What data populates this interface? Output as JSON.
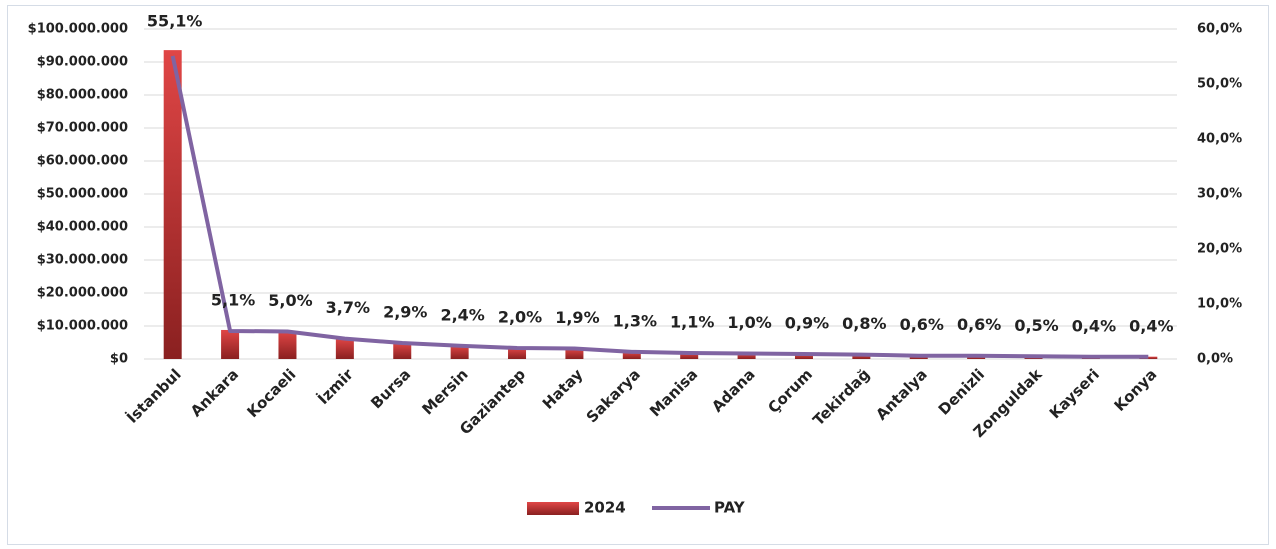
{
  "chart_data": {
    "type": "bar+line",
    "categories": [
      "İstanbul",
      "Ankara",
      "Kocaeli",
      "İzmir",
      "Bursa",
      "Mersin",
      "Gaziantep",
      "Hatay",
      "Sakarya",
      "Manisa",
      "Adana",
      "Çorum",
      "Tekirdağ",
      "Antalya",
      "Denizli",
      "Zonguldak",
      "Kayseri",
      "Konya"
    ],
    "series": [
      {
        "name": "2024",
        "type": "bar",
        "color": "#d63a3a",
        "values": [
          93600000,
          8800000,
          8500000,
          6300000,
          4900000,
          4100000,
          3400000,
          3200000,
          2200000,
          1900000,
          1700000,
          1500000,
          1400000,
          1000000,
          1000000,
          850000,
          700000,
          700000
        ]
      },
      {
        "name": "PAY",
        "type": "line",
        "axis": "y2",
        "color": "#8064a2",
        "values": [
          55.1,
          5.1,
          5.0,
          3.7,
          2.9,
          2.4,
          2.0,
          1.9,
          1.3,
          1.1,
          1.0,
          0.9,
          0.8,
          0.6,
          0.6,
          0.5,
          0.4,
          0.4
        ],
        "value_labels": [
          "55,1%",
          "5,1%",
          "5,0%",
          "3,7%",
          "2,9%",
          "2,4%",
          "2,0%",
          "1,9%",
          "1,3%",
          "1,1%",
          "1,0%",
          "0,9%",
          "0,8%",
          "0,6%",
          "0,6%",
          "0,5%",
          "0,4%",
          "0,4%"
        ]
      }
    ],
    "ylim": [
      0,
      100000000
    ],
    "yticks": [
      {
        "value": 0,
        "label": "$0"
      },
      {
        "value": 10000000,
        "label": "$10.000.000"
      },
      {
        "value": 20000000,
        "label": "$20.000.000"
      },
      {
        "value": 30000000,
        "label": "$30.000.000"
      },
      {
        "value": 40000000,
        "label": "$40.000.000"
      },
      {
        "value": 50000000,
        "label": "$50.000.000"
      },
      {
        "value": 60000000,
        "label": "$60.000.000"
      },
      {
        "value": 70000000,
        "label": "$70.000.000"
      },
      {
        "value": 80000000,
        "label": "$80.000.000"
      },
      {
        "value": 90000000,
        "label": "$90.000.000"
      },
      {
        "value": 100000000,
        "label": "$100.000.000"
      }
    ],
    "y2lim": [
      0,
      60
    ],
    "y2ticks": [
      {
        "value": 0,
        "label": "0,0%"
      },
      {
        "value": 10,
        "label": "10,0%"
      },
      {
        "value": 20,
        "label": "20,0%"
      },
      {
        "value": 30,
        "label": "30,0%"
      },
      {
        "value": 40,
        "label": "40,0%"
      },
      {
        "value": 50,
        "label": "50,0%"
      },
      {
        "value": 60,
        "label": "60,0%"
      }
    ],
    "grid": true,
    "legend": "bottom"
  }
}
